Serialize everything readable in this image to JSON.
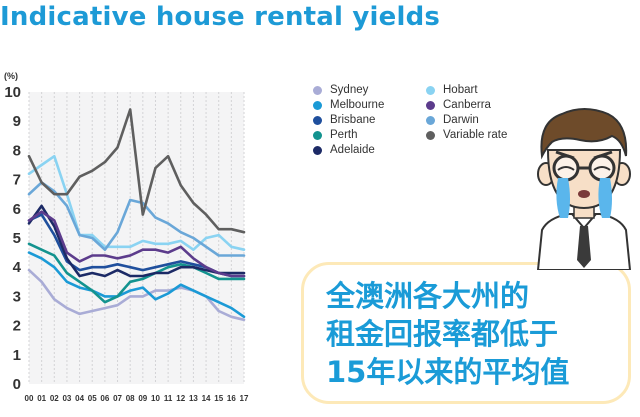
{
  "title": "Indicative house rental yields",
  "chart_data": {
    "type": "line",
    "ylabel": "(%)",
    "xlabel": "",
    "ylim": [
      0,
      10
    ],
    "yticks": [
      "0",
      "1",
      "2",
      "3",
      "4",
      "5",
      "6",
      "7",
      "8",
      "9",
      "10"
    ],
    "categories": [
      "00",
      "01",
      "02",
      "03",
      "04",
      "05",
      "06",
      "07",
      "08",
      "09",
      "10",
      "11",
      "12",
      "13",
      "14",
      "15",
      "16",
      "17"
    ],
    "grid": "vertical dashed",
    "legend_position": "top-right",
    "series": [
      {
        "name": "Sydney",
        "color": "#a9acd6",
        "x": [
          0,
          1,
          2,
          3,
          4,
          5,
          6,
          7,
          8,
          9,
          10,
          11,
          12,
          13,
          14,
          15,
          16,
          17
        ],
        "values": [
          3.9,
          3.5,
          2.9,
          2.6,
          2.4,
          2.5,
          2.6,
          2.7,
          3.0,
          3.0,
          3.2,
          3.2,
          3.3,
          3.2,
          3.0,
          2.5,
          2.3,
          2.2
        ]
      },
      {
        "name": "Melbourne",
        "color": "#1b9ad6",
        "x": [
          0,
          1,
          2,
          3,
          4,
          5,
          6,
          7,
          8,
          9,
          10,
          11,
          12,
          13,
          14,
          15,
          16,
          17
        ],
        "values": [
          4.5,
          4.3,
          4.0,
          3.5,
          3.3,
          3.2,
          3.0,
          3.0,
          3.2,
          3.3,
          2.9,
          3.1,
          3.4,
          3.2,
          3.0,
          2.8,
          2.6,
          2.3
        ]
      },
      {
        "name": "Brisbane",
        "color": "#1f4f9d",
        "x": [
          0,
          1,
          2,
          3,
          4,
          5,
          6,
          7,
          8,
          9,
          10,
          11,
          12,
          13,
          14,
          15,
          16,
          17
        ],
        "values": [
          5.6,
          5.8,
          5.1,
          4.2,
          3.9,
          4.0,
          4.0,
          4.1,
          4.0,
          3.9,
          4.0,
          4.1,
          4.2,
          4.1,
          4.0,
          3.8,
          3.7,
          3.7
        ]
      },
      {
        "name": "Perth",
        "color": "#13938f",
        "x": [
          0,
          1,
          2,
          3,
          4,
          5,
          6,
          7,
          8,
          9,
          10,
          11,
          12,
          13,
          14,
          15,
          16,
          17
        ],
        "values": [
          4.8,
          4.6,
          4.4,
          3.8,
          3.5,
          3.2,
          2.8,
          3.0,
          3.5,
          3.6,
          3.8,
          4.0,
          4.1,
          4.0,
          3.8,
          3.6,
          3.6,
          3.6
        ]
      },
      {
        "name": "Adelaide",
        "color": "#1c2a66",
        "x": [
          0,
          1,
          2,
          3,
          4,
          5,
          6,
          7,
          8,
          9,
          10,
          11,
          12,
          13,
          14,
          15,
          16,
          17
        ],
        "values": [
          5.5,
          6.1,
          5.4,
          4.3,
          3.7,
          3.8,
          3.7,
          3.9,
          3.7,
          3.7,
          3.8,
          3.8,
          4.0,
          4.0,
          3.9,
          3.8,
          3.8,
          3.8
        ]
      },
      {
        "name": "Hobart",
        "color": "#8ad3f2",
        "x": [
          0,
          1,
          2,
          3,
          4,
          5,
          6,
          7,
          8,
          9,
          10,
          11,
          12,
          13,
          14,
          15,
          16,
          17
        ],
        "values": [
          7.2,
          7.5,
          7.8,
          6.5,
          5.1,
          5.1,
          4.7,
          4.7,
          4.7,
          4.9,
          4.8,
          4.8,
          4.9,
          4.6,
          5.0,
          5.1,
          4.7,
          4.6
        ]
      },
      {
        "name": "Canberra",
        "color": "#5c3c8c",
        "x": [
          0,
          1,
          2,
          3,
          4,
          5,
          6,
          7,
          8,
          9,
          10,
          11,
          12,
          13,
          14,
          15,
          16,
          17
        ],
        "values": [
          5.6,
          5.9,
          5.6,
          4.5,
          4.2,
          4.4,
          4.4,
          4.3,
          4.4,
          4.6,
          4.6,
          4.5,
          4.7,
          4.3,
          4.0,
          3.8,
          3.7,
          3.7
        ]
      },
      {
        "name": "Darwin",
        "color": "#6aa7d8",
        "x": [
          0,
          1,
          2,
          3,
          4,
          5,
          6,
          7,
          8,
          9,
          10,
          11,
          12,
          13,
          14,
          15,
          16,
          17
        ],
        "values": [
          6.5,
          6.9,
          6.6,
          6.1,
          5.1,
          5.0,
          4.6,
          5.2,
          6.3,
          6.2,
          5.7,
          5.5,
          5.2,
          5.0,
          4.7,
          4.4,
          4.4,
          4.4
        ]
      },
      {
        "name": "Variable rate",
        "color": "#5f5f5f",
        "x": [
          0,
          1,
          2,
          3,
          4,
          5,
          6,
          7,
          8,
          9,
          10,
          11,
          12,
          13,
          14,
          15,
          16,
          17
        ],
        "values": [
          7.8,
          6.9,
          6.5,
          6.5,
          7.1,
          7.3,
          7.6,
          8.1,
          9.4,
          5.8,
          7.4,
          7.8,
          6.8,
          6.2,
          5.8,
          5.3,
          5.3,
          5.2
        ]
      }
    ]
  },
  "callout": {
    "lines": [
      "全澳洲各大州的",
      "租金回报率都低于",
      "15年以来的平均值"
    ],
    "border_color": "#fde9b8",
    "text_color": "#1a9bd7"
  }
}
